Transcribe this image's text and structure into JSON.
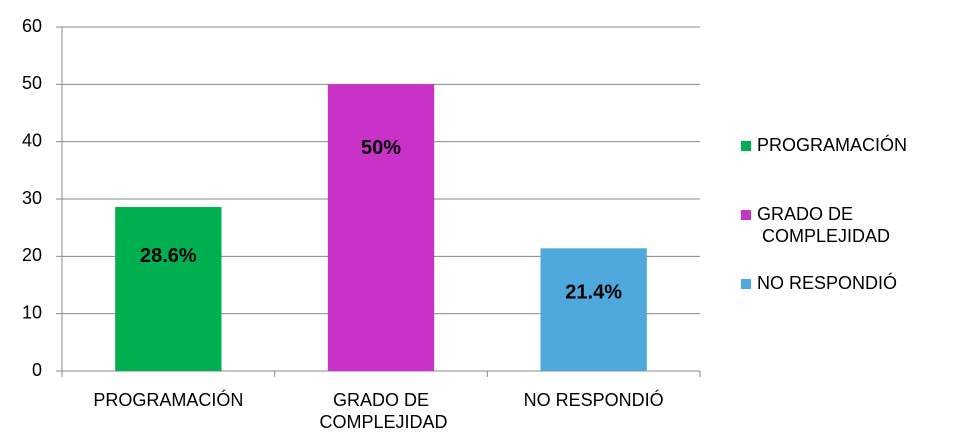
{
  "chart_data": {
    "type": "bar",
    "categories": [
      "PROGRAMACIÓN",
      "GRADO DE COMPLEJIDAD",
      "NO RESPONDIÓ"
    ],
    "values": [
      28.6,
      50,
      21.4
    ],
    "value_labels": [
      "28.6%",
      "50%",
      "21.4%"
    ],
    "colors": [
      "#00b050",
      "#c832c8",
      "#4fa8dc"
    ],
    "ylim": [
      0,
      60
    ],
    "yticks": [
      0,
      10,
      20,
      30,
      40,
      50,
      60
    ],
    "grid": true,
    "legend": "right"
  }
}
